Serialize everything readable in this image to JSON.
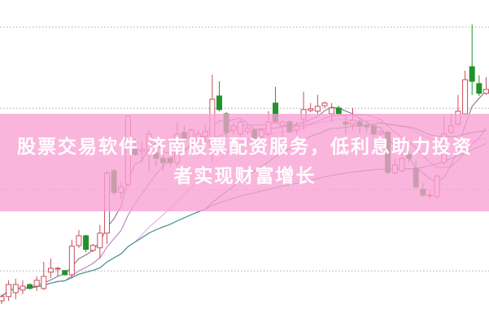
{
  "article": {
    "title": "股票交易软件 济南股票配资服务，低利息助力投资者实现财富增长"
  },
  "colors": {
    "up": "#cc4b5a",
    "down": "#23922b",
    "banner": "#f8a0d4",
    "grid": "#aaaaaa",
    "ma": [
      "#7d6b86",
      "#b478b8",
      "#e8a4dc",
      "#3f7f4a",
      "#3d8d95"
    ]
  },
  "chart_data": {
    "type": "candlestick",
    "ylim": [
      0,
      100
    ],
    "grid": true,
    "grid_levels": [
      91.7,
      66.7,
      41.7,
      16.7
    ],
    "moving_average_periods": [
      5,
      10,
      20,
      30,
      60
    ],
    "candles": [
      [
        7.5,
        8.8,
        9.5,
        6.5
      ],
      [
        8.8,
        12.5,
        13.8,
        7.5
      ],
      [
        10,
        12.5,
        14.3,
        8
      ],
      [
        10.8,
        12,
        13.8,
        9.5
      ],
      [
        12.5,
        11.3,
        12.8,
        11
      ],
      [
        12,
        13.8,
        15,
        10.5
      ],
      [
        11.3,
        15,
        19.5,
        10.8
      ],
      [
        16.3,
        17.5,
        20.5,
        14.5
      ],
      [
        17.3,
        17.5,
        18,
        15
      ],
      [
        16.8,
        15.5,
        17,
        15.3
      ],
      [
        15.5,
        24.3,
        26.3,
        14.3
      ],
      [
        24.5,
        27.5,
        29.3,
        23.8
      ],
      [
        27.5,
        23.3,
        27.8,
        22.5
      ],
      [
        23,
        24.5,
        25,
        22.5
      ],
      [
        23.8,
        28.3,
        30.8,
        20.5
      ],
      [
        28.3,
        46.8,
        47.5,
        25
      ],
      [
        47.5,
        40.8,
        48,
        40
      ],
      [
        40.8,
        42.5,
        43.8,
        38.8
      ],
      [
        43.3,
        64.3,
        64.3,
        42.5
      ],
      [
        54.3,
        52.5,
        57.5,
        52
      ],
      [
        53.5,
        54,
        56.3,
        50
      ],
      [
        53.8,
        58.8,
        60,
        47.5
      ],
      [
        53,
        51.3,
        53.8,
        48.8
      ],
      [
        51.3,
        50,
        52.5,
        47.5
      ],
      [
        51.3,
        50,
        52,
        48.8
      ],
      [
        50,
        58.8,
        62.5,
        48.8
      ],
      [
        59.3,
        57.5,
        61.3,
        56.3
      ],
      [
        57.5,
        60,
        60.5,
        56.3
      ],
      [
        57,
        58.8,
        60,
        55
      ],
      [
        58,
        59.5,
        61.3,
        56.3
      ],
      [
        53.8,
        69.5,
        77,
        50
      ],
      [
        70.5,
        66.3,
        75,
        65.8
      ],
      [
        65,
        59.3,
        65.5,
        57.5
      ],
      [
        60,
        61.3,
        62.5,
        58.8
      ],
      [
        58.8,
        62.5,
        63,
        58
      ],
      [
        59.5,
        60.5,
        61.3,
        58.8
      ],
      [
        60,
        57.5,
        60.5,
        57
      ],
      [
        58,
        60,
        60.8,
        57.5
      ],
      [
        58.8,
        62.5,
        65.8,
        58
      ],
      [
        68.3,
        62.5,
        73.3,
        62
      ],
      [
        61.3,
        62.5,
        63,
        58.3
      ],
      [
        62.5,
        59.5,
        63,
        58.8
      ],
      [
        60,
        61.3,
        62.5,
        58.8
      ],
      [
        63.3,
        66.3,
        71.8,
        60
      ],
      [
        66,
        66.5,
        68.3,
        65.5
      ],
      [
        65.8,
        67.3,
        70.8,
        65
      ],
      [
        67.5,
        68.3,
        68.8,
        66.8
      ],
      [
        65,
        66.8,
        68.3,
        62.5
      ],
      [
        66.8,
        65,
        67.5,
        64.5
      ],
      [
        62.5,
        61.8,
        65,
        58.8
      ],
      [
        61.8,
        63,
        66.8,
        60
      ],
      [
        62.5,
        61.3,
        63.8,
        58.8
      ],
      [
        61.5,
        61,
        62.5,
        59.3
      ],
      [
        61.3,
        58.8,
        61.8,
        58
      ],
      [
        58.8,
        59.5,
        60,
        58.3
      ],
      [
        59.3,
        47,
        60,
        46.3
      ],
      [
        46.8,
        49.3,
        51.3,
        46.3
      ],
      [
        47.5,
        51.3,
        53.8,
        47
      ],
      [
        52.5,
        51.3,
        53.8,
        50
      ],
      [
        48.3,
        42.5,
        50.5,
        42
      ],
      [
        41.8,
        40,
        43.8,
        39.5
      ],
      [
        39.8,
        40,
        41.3,
        38.8
      ],
      [
        39.5,
        45.8,
        46.3,
        38.8
      ],
      [
        50,
        58.8,
        64.3,
        49.3
      ],
      [
        59.3,
        61.3,
        65,
        58.8
      ],
      [
        61.8,
        65.8,
        70.8,
        61.3
      ],
      [
        65,
        75.5,
        78.3,
        64.5
      ],
      [
        79.5,
        75,
        92.5,
        70.8
      ],
      [
        74.3,
        71.3,
        76.8,
        70.5
      ],
      [
        71.3,
        72.5,
        76.3,
        70.8
      ]
    ]
  }
}
